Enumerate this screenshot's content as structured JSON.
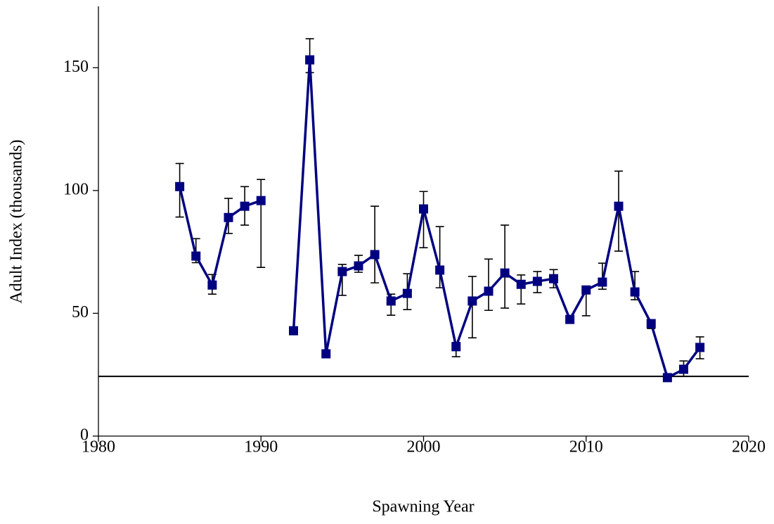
{
  "chart_data": {
    "type": "line",
    "x_label": "Spawning Year",
    "y_label": "Adult Index (thousands)",
    "x": [
      1985,
      1986,
      1987,
      1988,
      1989,
      1990,
      1991,
      1992,
      1993,
      1994,
      1995,
      1996,
      1997,
      1998,
      1999,
      2000,
      2001,
      2002,
      2003,
      2004,
      2005,
      2006,
      2007,
      2008,
      2009,
      2010,
      2011,
      2012,
      2013,
      2014,
      2015,
      2016,
      2017
    ],
    "series": [
      {
        "name": "Adult Index",
        "color": "#000080",
        "values": [
          101.6,
          73.3,
          61.5,
          89,
          93.6,
          95.9,
          null,
          42.9,
          153.2,
          33.5,
          67,
          69.3,
          73.9,
          55,
          58.1,
          92.5,
          67.6,
          36.4,
          55,
          59,
          66.4,
          61.8,
          63,
          64.1,
          47.5,
          59.5,
          62.7,
          93.6,
          58.7,
          45.8,
          23.8,
          27.2,
          36.1
        ],
        "upper": [
          111,
          80.4,
          65.8,
          96.8,
          101.6,
          104.5,
          null,
          null,
          161.8,
          null,
          69.9,
          73.6,
          93.6,
          57.8,
          66.1,
          99.6,
          85.3,
          38.1,
          65,
          72.1,
          85.9,
          65.6,
          67,
          67.8,
          49,
          61,
          70.4,
          107.9,
          67,
          47.2,
          24.9,
          30.6,
          40.4
        ],
        "lower": [
          89.2,
          70.6,
          57.8,
          82.5,
          85.9,
          68.7,
          null,
          null,
          148,
          null,
          57.3,
          66.7,
          62.4,
          49.2,
          51.5,
          76.7,
          60.4,
          32.3,
          40,
          51.2,
          52.1,
          53.8,
          58.4,
          60.4,
          46.4,
          49,
          59.8,
          75.3,
          55.5,
          43.8,
          22.6,
          24.3,
          31.5
        ]
      }
    ],
    "reference_line": 24.3,
    "xlim": [
      1980,
      2020
    ],
    "xticks": [
      1980,
      1990,
      2000,
      2010,
      2020
    ],
    "ylim": [
      0,
      175
    ],
    "yticks": [
      0,
      50,
      100,
      150
    ]
  }
}
